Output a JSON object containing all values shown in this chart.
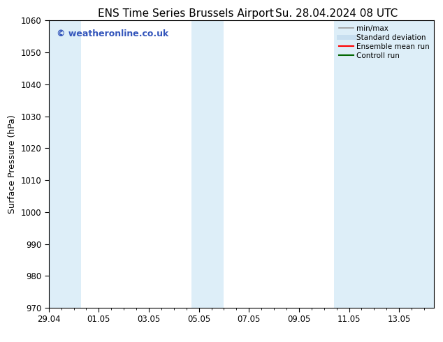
{
  "title_left": "ENS Time Series Brussels Airport",
  "title_right": "Su. 28.04.2024 08 UTC",
  "ylabel": "Surface Pressure (hPa)",
  "ylim": [
    970,
    1060
  ],
  "yticks": [
    970,
    980,
    990,
    1000,
    1010,
    1020,
    1030,
    1040,
    1050,
    1060
  ],
  "xtick_labels": [
    "29.04",
    "01.05",
    "03.05",
    "05.05",
    "07.05",
    "09.05",
    "11.05",
    "13.05"
  ],
  "xtick_positions": [
    0,
    2,
    4,
    6,
    8,
    10,
    12,
    14
  ],
  "xlim": [
    0,
    15.4
  ],
  "bg_color": "#ffffff",
  "plot_bg_color": "#ffffff",
  "shaded_band_color": "#ddeef8",
  "shaded_ranges": [
    [
      0.0,
      1.3
    ],
    [
      5.7,
      7.0
    ],
    [
      11.4,
      15.4
    ]
  ],
  "watermark_text": "© weatheronline.co.uk",
  "watermark_color": "#3355bb",
  "legend_items": [
    {
      "label": "min/max",
      "color": "#999999",
      "lw": 1.2
    },
    {
      "label": "Standard deviation",
      "color": "#c8dff0",
      "lw": 5
    },
    {
      "label": "Ensemble mean run",
      "color": "#ff0000",
      "lw": 1.5
    },
    {
      "label": "Controll run",
      "color": "#006600",
      "lw": 1.5
    }
  ],
  "title_fontsize": 11,
  "tick_fontsize": 8.5,
  "ylabel_fontsize": 9,
  "watermark_fontsize": 9,
  "legend_fontsize": 7.5
}
